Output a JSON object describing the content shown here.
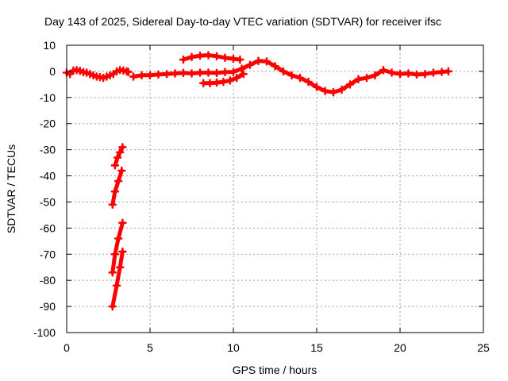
{
  "chart_data": {
    "type": "scatter",
    "title": "Day 143 of 2025, Sidereal Day-to-day VTEC variation (SDTVAR) for receiver ifsc",
    "xlabel": "GPS time / hours",
    "ylabel": "SDTVAR / TECUs",
    "xlim": [
      0,
      25
    ],
    "ylim": [
      -100,
      10
    ],
    "xticks": [
      0,
      5,
      10,
      15,
      20,
      25
    ],
    "yticks": [
      10,
      0,
      -10,
      -20,
      -30,
      -40,
      -50,
      -60,
      -70,
      -80,
      -90,
      -100
    ],
    "grid": true,
    "legend": "none",
    "marker": "plus",
    "series_color": "#ff0000",
    "series": [
      {
        "x": [
          0.0,
          0.2,
          0.4,
          0.6,
          0.8,
          1.0,
          1.2,
          1.4,
          1.6,
          1.8,
          2.0,
          2.2,
          2.4,
          2.6,
          2.8,
          3.0,
          3.2,
          3.4,
          3.6,
          3.7
        ],
        "y": [
          -0.5,
          -1.0,
          0.3,
          0.5,
          0.2,
          -0.3,
          -0.5,
          -1.0,
          -1.5,
          -2.0,
          -2.2,
          -2.5,
          -2.0,
          -1.5,
          -1.0,
          0.0,
          0.5,
          0.3,
          0.0,
          -0.2
        ]
      },
      {
        "x": [
          4.0,
          4.5,
          5.0,
          5.5,
          6.0,
          6.5,
          7.0,
          7.5,
          8.0,
          8.5,
          9.0,
          9.5,
          10.0,
          10.5,
          11.0,
          11.5,
          12.0,
          12.5,
          13.0,
          13.5,
          14.0,
          14.5,
          15.0,
          15.5,
          16.0,
          16.5,
          17.0,
          17.5,
          18.0,
          18.5,
          19.0,
          19.5,
          20.0,
          20.5,
          21.0,
          21.5,
          22.0,
          22.5,
          22.9
        ],
        "y": [
          -2.0,
          -1.5,
          -1.5,
          -1.2,
          -1.0,
          -0.8,
          -0.6,
          -0.8,
          -0.5,
          -0.5,
          -0.6,
          -0.3,
          -0.2,
          1.0,
          2.5,
          4.0,
          3.8,
          2.0,
          0.0,
          -1.5,
          -2.5,
          -4.0,
          -6.0,
          -7.5,
          -8.0,
          -7.0,
          -5.0,
          -3.0,
          -2.5,
          -1.5,
          0.5,
          -0.5,
          -1.0,
          -0.8,
          -1.2,
          -1.0,
          -0.5,
          -0.2,
          0.0
        ]
      },
      {
        "x": [
          7.0,
          7.5,
          8.0,
          8.5,
          9.0,
          9.5,
          10.0,
          10.4
        ],
        "y": [
          4.5,
          5.5,
          6.0,
          6.2,
          5.8,
          5.2,
          4.8,
          4.5
        ]
      },
      {
        "x": [
          8.2,
          8.6,
          9.0,
          9.4,
          9.8,
          10.2,
          10.6
        ],
        "y": [
          -4.5,
          -4.5,
          -4.3,
          -4.0,
          -3.5,
          -2.5,
          -1.0
        ]
      },
      {
        "x": [
          2.75,
          3.0,
          3.2,
          3.35
        ],
        "y": [
          -90,
          -82,
          -75,
          -69
        ]
      },
      {
        "x": [
          2.75,
          2.9,
          3.1,
          3.35
        ],
        "y": [
          -77,
          -70,
          -64,
          -58
        ]
      },
      {
        "x": [
          2.75,
          2.9,
          3.1,
          3.3
        ],
        "y": [
          -51,
          -46,
          -42,
          -38
        ]
      },
      {
        "x": [
          2.9,
          3.05,
          3.2,
          3.35
        ],
        "y": [
          -36,
          -33,
          -31,
          -29
        ]
      }
    ]
  }
}
